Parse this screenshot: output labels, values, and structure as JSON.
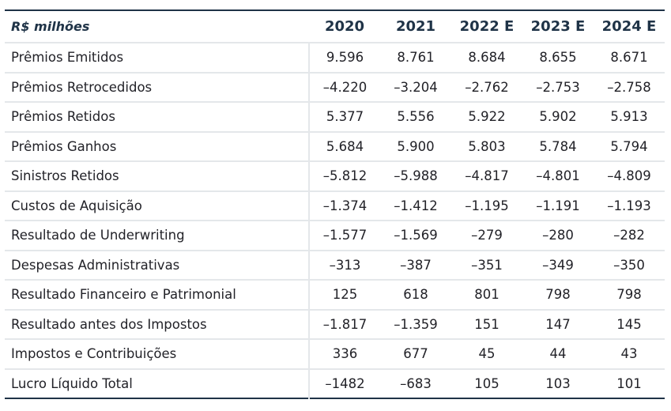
{
  "table": {
    "header": {
      "unit_label": "R$ milhões",
      "years": [
        "2020",
        "2021",
        "2022 E",
        "2023 E",
        "2024 E"
      ]
    },
    "rows": [
      {
        "label": "Prêmios Emitidos",
        "values": [
          "9.596",
          "8.761",
          "8.684",
          "8.655",
          "8.671"
        ]
      },
      {
        "label": "Prêmios Retrocedidos",
        "values": [
          "–4.220",
          "–3.204",
          "–2.762",
          "–2.753",
          "–2.758"
        ]
      },
      {
        "label": "Prêmios Retidos",
        "values": [
          "5.377",
          "5.556",
          "5.922",
          "5.902",
          "5.913"
        ]
      },
      {
        "label": "Prêmios Ganhos",
        "values": [
          "5.684",
          "5.900",
          "5.803",
          "5.784",
          "5.794"
        ]
      },
      {
        "label": "Sinistros Retidos",
        "values": [
          "–5.812",
          "–5.988",
          "–4.817",
          "–4.801",
          "–4.809"
        ]
      },
      {
        "label": "Custos de Aquisição",
        "values": [
          "–1.374",
          "–1.412",
          "–1.195",
          "–1.191",
          "–1.193"
        ]
      },
      {
        "label": "Resultado de Underwriting",
        "values": [
          "–1.577",
          "–1.569",
          "–279",
          "–280",
          "–282"
        ]
      },
      {
        "label": "Despesas Administrativas",
        "values": [
          "–313",
          "–387",
          "–351",
          "–349",
          "–350"
        ]
      },
      {
        "label": "Resultado Financeiro e Patrimonial",
        "values": [
          "125",
          "618",
          "801",
          "798",
          "798"
        ]
      },
      {
        "label": "Resultado antes dos Impostos",
        "values": [
          "–1.817",
          "–1.359",
          "151",
          "147",
          "145"
        ]
      },
      {
        "label": "Impostos e Contribuições",
        "values": [
          "336",
          "677",
          "45",
          "44",
          "43"
        ]
      },
      {
        "label": "Lucro Líquido Total",
        "values": [
          "–1482",
          "–683",
          "105",
          "103",
          "101"
        ]
      }
    ]
  },
  "colors": {
    "header_text": "#1f3347",
    "rule_dark": "#1f3347",
    "rule_light": "#e4e7ea"
  }
}
